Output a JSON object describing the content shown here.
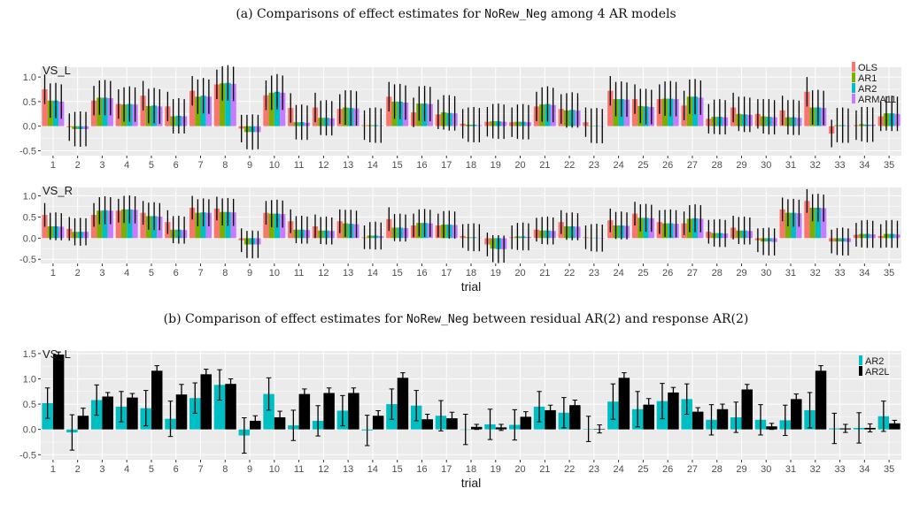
{
  "captions": {
    "a": {
      "prefix": "(a) Comparisons of effect estimates for ",
      "code": "NoRew_Neg",
      "suffix": " among 4 AR models"
    },
    "b": {
      "prefix": "(b) Comparison of effect estimates for ",
      "code": "NoRew_Neg",
      "suffix": " between residual AR(2) and response AR(2)"
    }
  },
  "colors": {
    "OLS": "#f8766d",
    "AR1": "#7cae00",
    "AR2": "#00bfc4",
    "ARMA11": "#c77cff",
    "AR2L": "#000000",
    "panel_bg": "#ebebeb",
    "grid": "#ffffff"
  },
  "chart_data": [
    {
      "type": "bar",
      "title": "VS_L",
      "xlabel": "",
      "ylabel": "",
      "categories": [
        "1",
        "2",
        "3",
        "4",
        "5",
        "6",
        "7",
        "8",
        "9",
        "10",
        "11",
        "12",
        "13",
        "14",
        "15",
        "16",
        "17",
        "18",
        "19",
        "20",
        "21",
        "22",
        "23",
        "24",
        "25",
        "26",
        "27",
        "28",
        "29",
        "30",
        "31",
        "32",
        "33",
        "34",
        "35"
      ],
      "ylim": [
        -0.6,
        1.2
      ],
      "yticks": [
        -0.5,
        0.0,
        0.5,
        1.0
      ],
      "ytick_labels": [
        "-0.5",
        "0.0",
        "0.5",
        "1.0"
      ],
      "legend": "right",
      "series": [
        {
          "name": "OLS",
          "values": [
            0.75,
            -0.02,
            0.52,
            0.45,
            0.62,
            0.4,
            0.72,
            0.85,
            -0.05,
            0.63,
            0.37,
            0.38,
            0.35,
            0.02,
            0.6,
            0.28,
            0.24,
            0.05,
            0.09,
            0.08,
            0.4,
            0.35,
            0.08,
            0.72,
            0.55,
            0.55,
            0.42,
            0.15,
            0.38,
            0.25,
            0.32,
            0.7,
            -0.15,
            0.02,
            0.2
          ],
          "err": [
            0.3,
            0.28,
            0.3,
            0.3,
            0.3,
            0.3,
            0.3,
            0.3,
            0.28,
            0.3,
            0.3,
            0.3,
            0.3,
            0.3,
            0.3,
            0.3,
            0.3,
            0.3,
            0.3,
            0.3,
            0.3,
            0.3,
            0.3,
            0.3,
            0.3,
            0.3,
            0.3,
            0.3,
            0.3,
            0.3,
            0.3,
            0.3,
            0.28,
            0.3,
            0.3
          ]
        },
        {
          "name": "AR1",
          "values": [
            0.52,
            -0.06,
            0.58,
            0.44,
            0.41,
            0.2,
            0.6,
            0.87,
            -0.12,
            0.68,
            0.08,
            0.17,
            0.38,
            0.02,
            0.5,
            0.46,
            0.28,
            0.03,
            0.1,
            0.09,
            0.44,
            0.32,
            0.01,
            0.55,
            0.41,
            0.56,
            0.6,
            0.19,
            0.25,
            0.2,
            0.18,
            0.38,
            0.02,
            0.04,
            0.26
          ],
          "err": [
            0.35,
            0.35,
            0.35,
            0.35,
            0.35,
            0.35,
            0.35,
            0.35,
            0.35,
            0.35,
            0.35,
            0.35,
            0.35,
            0.35,
            0.35,
            0.35,
            0.35,
            0.35,
            0.35,
            0.35,
            0.35,
            0.35,
            0.35,
            0.35,
            0.35,
            0.35,
            0.35,
            0.35,
            0.35,
            0.35,
            0.35,
            0.35,
            0.35,
            0.35,
            0.35
          ]
        },
        {
          "name": "AR2",
          "values": [
            0.52,
            -0.06,
            0.58,
            0.45,
            0.42,
            0.21,
            0.62,
            0.88,
            -0.12,
            0.7,
            0.08,
            0.17,
            0.37,
            0.02,
            0.5,
            0.46,
            0.27,
            0.03,
            0.1,
            0.09,
            0.45,
            0.33,
            0.01,
            0.55,
            0.4,
            0.56,
            0.6,
            0.19,
            0.24,
            0.19,
            0.18,
            0.38,
            0.02,
            0.03,
            0.26
          ],
          "err": [
            0.36,
            0.36,
            0.36,
            0.36,
            0.36,
            0.36,
            0.36,
            0.36,
            0.36,
            0.36,
            0.36,
            0.36,
            0.36,
            0.36,
            0.36,
            0.36,
            0.36,
            0.36,
            0.36,
            0.36,
            0.36,
            0.36,
            0.36,
            0.36,
            0.36,
            0.36,
            0.36,
            0.36,
            0.36,
            0.36,
            0.36,
            0.36,
            0.36,
            0.36,
            0.36
          ]
        },
        {
          "name": "ARMA11",
          "values": [
            0.5,
            -0.06,
            0.57,
            0.44,
            0.4,
            0.2,
            0.6,
            0.86,
            -0.12,
            0.68,
            0.07,
            0.16,
            0.36,
            0.01,
            0.48,
            0.45,
            0.26,
            0.02,
            0.09,
            0.08,
            0.43,
            0.32,
            0.0,
            0.54,
            0.39,
            0.55,
            0.58,
            0.18,
            0.23,
            0.18,
            0.17,
            0.37,
            0.01,
            0.03,
            0.25
          ],
          "err": [
            0.35,
            0.35,
            0.35,
            0.35,
            0.35,
            0.35,
            0.35,
            0.35,
            0.35,
            0.35,
            0.35,
            0.35,
            0.35,
            0.35,
            0.35,
            0.35,
            0.35,
            0.35,
            0.35,
            0.35,
            0.35,
            0.35,
            0.35,
            0.35,
            0.35,
            0.35,
            0.35,
            0.35,
            0.35,
            0.35,
            0.35,
            0.35,
            0.35,
            0.35,
            0.35
          ]
        }
      ]
    },
    {
      "type": "bar",
      "title": "VS_R",
      "xlabel": "trial",
      "ylabel": "",
      "categories": [
        "1",
        "2",
        "3",
        "4",
        "5",
        "6",
        "7",
        "8",
        "9",
        "10",
        "11",
        "12",
        "13",
        "14",
        "15",
        "16",
        "17",
        "18",
        "19",
        "20",
        "21",
        "22",
        "23",
        "24",
        "25",
        "26",
        "27",
        "28",
        "29",
        "30",
        "31",
        "32",
        "33",
        "34",
        "35"
      ],
      "ylim": [
        -0.6,
        1.2
      ],
      "yticks": [
        -0.5,
        0.0,
        0.5,
        1.0
      ],
      "ytick_labels": [
        "-0.5",
        "0.0",
        "0.5",
        "1.0"
      ],
      "series": [
        {
          "name": "OLS",
          "values": [
            0.55,
            0.22,
            0.55,
            0.65,
            0.6,
            0.38,
            0.72,
            0.7,
            -0.05,
            0.6,
            0.4,
            0.28,
            0.4,
            0.02,
            0.45,
            0.3,
            0.3,
            0.05,
            -0.15,
            0.02,
            0.2,
            0.38,
            0.02,
            0.42,
            0.58,
            0.38,
            0.35,
            0.15,
            0.25,
            -0.05,
            0.68,
            0.88,
            -0.08,
            0.08,
            0.05
          ],
          "err": [
            0.28,
            0.28,
            0.28,
            0.28,
            0.28,
            0.28,
            0.28,
            0.28,
            0.28,
            0.28,
            0.28,
            0.28,
            0.28,
            0.28,
            0.28,
            0.28,
            0.28,
            0.28,
            0.28,
            0.28,
            0.28,
            0.28,
            0.28,
            0.28,
            0.28,
            0.28,
            0.28,
            0.28,
            0.28,
            0.28,
            0.28,
            0.28,
            0.28,
            0.28,
            0.28
          ]
        },
        {
          "name": "AR1",
          "values": [
            0.28,
            0.15,
            0.65,
            0.68,
            0.52,
            0.2,
            0.6,
            0.62,
            -0.15,
            0.58,
            0.2,
            0.18,
            0.35,
            0.06,
            0.25,
            0.36,
            0.32,
            0.02,
            -0.25,
            0.04,
            0.18,
            0.28,
            0.01,
            0.3,
            0.48,
            0.35,
            0.46,
            0.12,
            0.18,
            -0.08,
            0.6,
            0.72,
            -0.08,
            0.1,
            0.1
          ],
          "err": [
            0.32,
            0.32,
            0.32,
            0.32,
            0.32,
            0.32,
            0.32,
            0.32,
            0.32,
            0.32,
            0.32,
            0.32,
            0.32,
            0.32,
            0.32,
            0.32,
            0.32,
            0.32,
            0.32,
            0.32,
            0.32,
            0.32,
            0.32,
            0.32,
            0.32,
            0.32,
            0.32,
            0.32,
            0.32,
            0.32,
            0.32,
            0.32,
            0.32,
            0.32,
            0.32
          ]
        },
        {
          "name": "AR2",
          "values": [
            0.28,
            0.15,
            0.66,
            0.68,
            0.52,
            0.2,
            0.61,
            0.62,
            -0.15,
            0.58,
            0.2,
            0.18,
            0.34,
            0.06,
            0.25,
            0.36,
            0.32,
            0.02,
            -0.26,
            0.04,
            0.18,
            0.28,
            0.01,
            0.3,
            0.48,
            0.35,
            0.47,
            0.12,
            0.18,
            -0.08,
            0.6,
            0.72,
            -0.08,
            0.1,
            0.1
          ],
          "err": [
            0.33,
            0.33,
            0.33,
            0.33,
            0.33,
            0.33,
            0.33,
            0.33,
            0.33,
            0.33,
            0.33,
            0.33,
            0.33,
            0.33,
            0.33,
            0.33,
            0.33,
            0.33,
            0.33,
            0.33,
            0.33,
            0.33,
            0.33,
            0.33,
            0.33,
            0.33,
            0.33,
            0.33,
            0.33,
            0.33,
            0.33,
            0.33,
            0.33,
            0.33,
            0.33
          ]
        },
        {
          "name": "ARMA11",
          "values": [
            0.27,
            0.15,
            0.65,
            0.67,
            0.51,
            0.19,
            0.6,
            0.61,
            -0.15,
            0.57,
            0.19,
            0.17,
            0.33,
            0.05,
            0.24,
            0.35,
            0.31,
            0.01,
            -0.26,
            0.03,
            0.17,
            0.27,
            0.0,
            0.29,
            0.47,
            0.34,
            0.46,
            0.11,
            0.17,
            -0.09,
            0.59,
            0.71,
            -0.09,
            0.09,
            0.09
          ],
          "err": [
            0.32,
            0.32,
            0.32,
            0.32,
            0.32,
            0.32,
            0.32,
            0.32,
            0.32,
            0.32,
            0.32,
            0.32,
            0.32,
            0.32,
            0.32,
            0.32,
            0.32,
            0.32,
            0.32,
            0.32,
            0.32,
            0.32,
            0.32,
            0.32,
            0.32,
            0.32,
            0.32,
            0.32,
            0.32,
            0.32,
            0.32,
            0.32,
            0.32,
            0.32,
            0.32
          ]
        }
      ]
    },
    {
      "type": "bar",
      "title": "VS_L",
      "xlabel": "trial",
      "ylabel": "",
      "categories": [
        "1",
        "2",
        "3",
        "4",
        "5",
        "6",
        "7",
        "8",
        "9",
        "10",
        "11",
        "12",
        "13",
        "14",
        "15",
        "16",
        "17",
        "18",
        "19",
        "20",
        "21",
        "22",
        "23",
        "24",
        "25",
        "26",
        "27",
        "28",
        "29",
        "30",
        "31",
        "32",
        "33",
        "34",
        "35"
      ],
      "ylim": [
        -0.6,
        1.55
      ],
      "yticks": [
        -0.5,
        0.0,
        0.5,
        1.0,
        1.5
      ],
      "ytick_labels": [
        "-0.5",
        "0.0",
        "0.5",
        "1.0",
        "1.5"
      ],
      "legend": "right",
      "series": [
        {
          "name": "AR2",
          "values": [
            0.52,
            -0.06,
            0.58,
            0.45,
            0.42,
            0.21,
            0.62,
            0.88,
            -0.12,
            0.7,
            0.08,
            0.17,
            0.37,
            -0.02,
            0.5,
            0.47,
            0.27,
            0.0,
            0.1,
            0.09,
            0.45,
            0.33,
            0.01,
            0.55,
            0.4,
            0.56,
            0.6,
            0.19,
            0.24,
            0.19,
            0.18,
            0.38,
            0.02,
            0.03,
            0.26
          ],
          "err": [
            0.3,
            0.35,
            0.3,
            0.3,
            0.35,
            0.35,
            0.3,
            0.3,
            0.35,
            0.32,
            0.3,
            0.3,
            0.3,
            0.3,
            0.3,
            0.3,
            0.3,
            0.3,
            0.3,
            0.3,
            0.3,
            0.3,
            0.25,
            0.35,
            0.35,
            0.35,
            0.3,
            0.3,
            0.3,
            0.3,
            0.3,
            0.35,
            0.3,
            0.3,
            0.3
          ]
        },
        {
          "name": "AR2L",
          "values": [
            1.48,
            0.27,
            0.65,
            0.63,
            1.16,
            0.69,
            1.09,
            0.9,
            0.17,
            0.24,
            0.7,
            0.72,
            0.72,
            0.27,
            1.02,
            0.2,
            0.22,
            0.05,
            0.04,
            0.25,
            0.38,
            0.48,
            0.01,
            1.02,
            0.49,
            0.73,
            0.35,
            0.4,
            0.79,
            0.06,
            0.6,
            1.16,
            0.02,
            0.03,
            0.12
          ],
          "err": [
            0.05,
            0.15,
            0.08,
            0.08,
            0.1,
            0.2,
            0.1,
            0.1,
            0.1,
            0.12,
            0.1,
            0.1,
            0.1,
            0.1,
            0.1,
            0.1,
            0.12,
            0.05,
            0.06,
            0.1,
            0.1,
            0.1,
            0.08,
            0.1,
            0.12,
            0.1,
            0.08,
            0.1,
            0.1,
            0.06,
            0.1,
            0.1,
            0.08,
            0.08,
            0.06
          ]
        }
      ]
    }
  ]
}
